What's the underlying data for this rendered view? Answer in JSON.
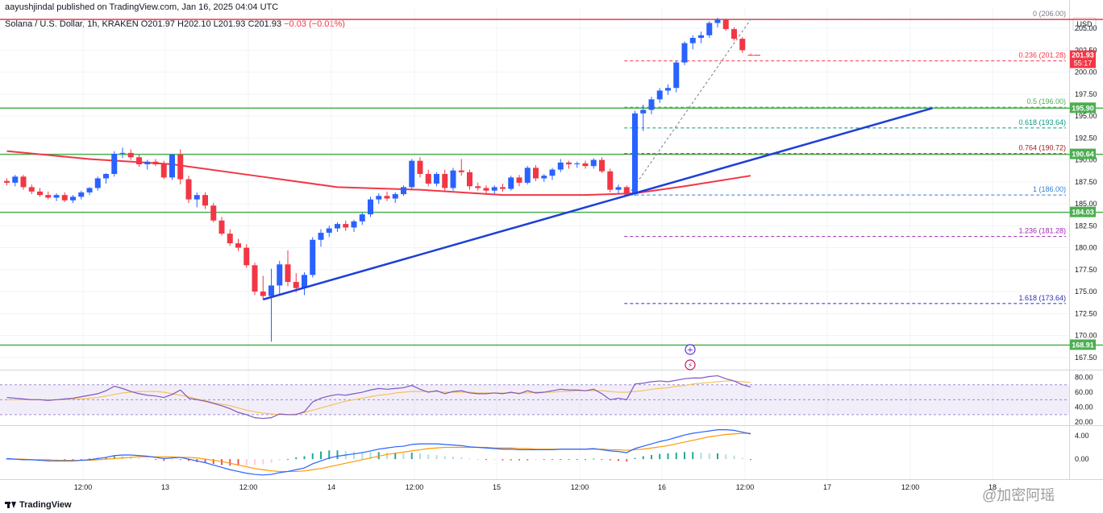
{
  "header": {
    "publisher_line": "aayushjindal published on TradingView.com, Jan 16, 2025 04:04 UTC",
    "symbol": "Solana / U.S. Dollar, 1h, KRAKEN",
    "ohlc": "O201.97  H202.10  L201.93  C201.93",
    "change": "−0.03 (−0.01%)"
  },
  "footer": {
    "brand": "TradingView"
  },
  "watermark": "@加密阿瑶",
  "colors": {
    "up": "#2962ff",
    "down": "#f23645",
    "sma": "#f23645",
    "trendline": "#1e3fd8",
    "level": "#4caf50",
    "top_level": "#f23645"
  },
  "icons": [
    "plus-circle-icon",
    "lightning-icon"
  ],
  "chart_data": [
    {
      "type": "candlestick",
      "title": "Solana / U.S. Dollar, 1h, KRAKEN",
      "price_axis_label": "USD",
      "y_ticks": [
        167.5,
        170.0,
        172.5,
        175.0,
        177.5,
        180.0,
        182.5,
        185.0,
        187.5,
        190.0,
        192.5,
        195.0,
        197.5,
        200.0,
        202.5,
        205.0
      ],
      "y_range": [
        166.2,
        207.3
      ],
      "x_ticks": [
        "12:00",
        "13",
        "12:00",
        "14",
        "12:00",
        "15",
        "12:00",
        "16",
        "12:00",
        "17",
        "12:00",
        "18"
      ],
      "candles": [
        [
          187.6,
          187.9,
          187.1,
          187.4
        ],
        [
          187.4,
          188.3,
          187.0,
          188.1
        ],
        [
          188.1,
          188.3,
          186.6,
          186.9
        ],
        [
          186.9,
          187.2,
          186.1,
          186.4
        ],
        [
          186.4,
          186.8,
          185.8,
          186.0
        ],
        [
          186.0,
          186.4,
          185.5,
          185.7
        ],
        [
          185.7,
          186.2,
          185.3,
          186.0
        ],
        [
          186.0,
          186.3,
          185.2,
          185.4
        ],
        [
          185.4,
          186.0,
          185.1,
          185.8
        ],
        [
          185.8,
          186.5,
          185.5,
          186.3
        ],
        [
          186.3,
          186.9,
          186.0,
          186.8
        ],
        [
          186.8,
          188.1,
          186.5,
          187.9
        ],
        [
          187.9,
          188.5,
          187.3,
          188.4
        ],
        [
          188.4,
          191.0,
          188.1,
          190.7
        ],
        [
          190.7,
          191.4,
          190.2,
          190.8
        ],
        [
          190.8,
          191.2,
          190.0,
          190.3
        ],
        [
          190.3,
          190.6,
          189.2,
          189.5
        ],
        [
          189.5,
          190.0,
          188.9,
          189.8
        ],
        [
          189.8,
          190.1,
          189.3,
          189.5
        ],
        [
          189.5,
          189.9,
          187.8,
          188.0
        ],
        [
          188.0,
          190.7,
          187.7,
          190.6
        ],
        [
          190.6,
          191.2,
          187.2,
          187.8
        ],
        [
          187.8,
          188.2,
          185.1,
          185.5
        ],
        [
          185.5,
          186.3,
          184.6,
          186.0
        ],
        [
          186.0,
          186.3,
          184.4,
          184.8
        ],
        [
          184.8,
          185.1,
          182.9,
          183.1
        ],
        [
          183.1,
          183.5,
          181.4,
          181.6
        ],
        [
          181.6,
          182.1,
          180.2,
          180.5
        ],
        [
          180.5,
          181.0,
          179.6,
          180.0
        ],
        [
          180.0,
          180.4,
          177.7,
          178.0
        ],
        [
          178.0,
          178.3,
          174.6,
          175.0
        ],
        [
          175.0,
          176.8,
          174.1,
          174.5
        ],
        [
          174.5,
          177.6,
          169.3,
          175.7
        ],
        [
          175.7,
          178.5,
          174.7,
          178.1
        ],
        [
          178.1,
          179.7,
          175.6,
          176.1
        ],
        [
          176.1,
          177.1,
          174.9,
          175.4
        ],
        [
          175.4,
          177.2,
          174.6,
          176.9
        ],
        [
          176.9,
          181.2,
          176.6,
          180.9
        ],
        [
          180.9,
          182.1,
          180.1,
          181.7
        ],
        [
          181.7,
          182.5,
          181.2,
          182.2
        ],
        [
          182.2,
          182.9,
          181.8,
          182.7
        ],
        [
          182.7,
          183.1,
          181.9,
          182.3
        ],
        [
          182.3,
          183.2,
          181.8,
          183.0
        ],
        [
          183.0,
          184.0,
          182.6,
          183.8
        ],
        [
          183.8,
          185.8,
          183.5,
          185.5
        ],
        [
          185.5,
          186.2,
          185.0,
          185.9
        ],
        [
          185.9,
          186.4,
          185.3,
          185.6
        ],
        [
          185.6,
          186.3,
          185.1,
          186.1
        ],
        [
          186.1,
          187.1,
          185.9,
          186.9
        ],
        [
          186.9,
          190.1,
          186.7,
          189.9
        ],
        [
          189.9,
          190.3,
          188.0,
          188.4
        ],
        [
          188.4,
          188.9,
          187.0,
          187.3
        ],
        [
          187.3,
          188.6,
          187.0,
          188.4
        ],
        [
          188.4,
          188.9,
          186.4,
          186.8
        ],
        [
          186.8,
          189.1,
          186.5,
          188.8
        ],
        [
          188.8,
          190.1,
          188.2,
          188.6
        ],
        [
          188.6,
          188.9,
          186.6,
          187.0
        ],
        [
          187.0,
          187.4,
          186.5,
          186.8
        ],
        [
          186.8,
          187.1,
          186.2,
          186.5
        ],
        [
          186.5,
          187.1,
          186.1,
          186.9
        ],
        [
          186.9,
          187.3,
          186.4,
          186.7
        ],
        [
          186.7,
          188.2,
          186.5,
          188.0
        ],
        [
          188.0,
          188.3,
          187.0,
          187.4
        ],
        [
          187.4,
          189.3,
          187.2,
          189.1
        ],
        [
          189.1,
          189.4,
          187.6,
          187.9
        ],
        [
          187.9,
          188.4,
          187.5,
          188.2
        ],
        [
          188.2,
          189.1,
          187.7,
          188.9
        ],
        [
          188.9,
          190.1,
          188.6,
          189.7
        ],
        [
          189.7,
          189.9,
          189.0,
          189.5
        ],
        [
          189.5,
          189.8,
          189.1,
          189.6
        ],
        [
          189.6,
          189.9,
          189.0,
          189.3
        ],
        [
          189.3,
          190.2,
          189.0,
          190.0
        ],
        [
          190.0,
          190.3,
          188.5,
          188.7
        ],
        [
          188.7,
          189.0,
          186.3,
          186.6
        ],
        [
          186.6,
          187.2,
          186.2,
          186.9
        ],
        [
          186.9,
          187.1,
          185.9,
          186.1
        ],
        [
          186.1,
          195.6,
          185.9,
          195.3
        ],
        [
          195.3,
          196.3,
          193.3,
          195.7
        ],
        [
          195.7,
          197.2,
          195.2,
          196.9
        ],
        [
          196.9,
          198.2,
          196.5,
          197.9
        ],
        [
          197.9,
          198.6,
          197.4,
          198.2
        ],
        [
          198.2,
          201.3,
          197.7,
          201.1
        ],
        [
          201.1,
          203.5,
          200.8,
          203.3
        ],
        [
          203.3,
          204.2,
          202.6,
          203.9
        ],
        [
          203.9,
          204.6,
          203.3,
          204.2
        ],
        [
          204.2,
          205.8,
          203.9,
          205.6
        ],
        [
          205.6,
          206.2,
          205.1,
          206.0
        ],
        [
          206.0,
          206.1,
          204.7,
          204.9
        ],
        [
          204.9,
          205.1,
          203.6,
          203.8
        ],
        [
          203.8,
          204.0,
          202.2,
          202.5
        ],
        [
          201.97,
          202.1,
          201.93,
          201.93
        ]
      ],
      "sma_100": {
        "name": "",
        "from_index": 0,
        "points": [
          [
            0,
            191.0
          ],
          [
            10,
            190.1
          ],
          [
            20,
            189.5
          ],
          [
            30,
            188.2
          ],
          [
            40,
            186.9
          ],
          [
            50,
            186.6
          ],
          [
            60,
            186.0
          ],
          [
            70,
            186.0
          ],
          [
            76,
            186.2
          ],
          [
            82,
            187.0
          ],
          [
            90,
            188.2
          ]
        ]
      },
      "trendline": {
        "from": [
          31,
          174.1
        ],
        "to": [
          112,
          195.9
        ]
      },
      "horizontal_levels": [
        {
          "label": "206.00",
          "price": 206.0,
          "kind": "resistance"
        },
        {
          "label": "195.90",
          "price": 195.9,
          "kind": "support"
        },
        {
          "label": "190.64",
          "price": 190.64,
          "kind": "support"
        },
        {
          "label": "184.03",
          "price": 184.03,
          "kind": "support"
        },
        {
          "label": "168.91",
          "price": 168.91,
          "kind": "support"
        }
      ],
      "fibonacci": {
        "from_index": 75,
        "to_index": 90,
        "levels": [
          {
            "ratio": "0",
            "price": "206.00",
            "color": "#787b86"
          },
          {
            "ratio": "0.236",
            "price": "201.28",
            "color": "#f23645"
          },
          {
            "ratio": "0.5",
            "price": "196.00",
            "color": "#4caf50"
          },
          {
            "ratio": "0.618",
            "price": "193.64",
            "color": "#089981"
          },
          {
            "ratio": "0.764",
            "price": "190.72",
            "color": "#a51d1d"
          },
          {
            "ratio": "1",
            "price": "186.00",
            "color": "#2f7fd6"
          },
          {
            "ratio": "1.236",
            "price": "181.28",
            "color": "#9c27b0"
          },
          {
            "ratio": "1.618",
            "price": "173.64",
            "color": "#2c2fb0"
          }
        ]
      },
      "last_price_badge": {
        "price": "201.93",
        "countdown": "55:17"
      }
    },
    {
      "type": "line",
      "name": "RSI",
      "y_ticks": [
        20.0,
        40.0,
        60.0,
        80.0
      ],
      "band": [
        30,
        70
      ],
      "y_range": [
        17,
        88
      ],
      "rsi": [
        53,
        52,
        51,
        50,
        50,
        49,
        50,
        51,
        52,
        54,
        56,
        58,
        62,
        68,
        65,
        61,
        58,
        56,
        55,
        53,
        57,
        63,
        52,
        50,
        48,
        45,
        42,
        38,
        33,
        30,
        26,
        25,
        26,
        31,
        30,
        30,
        34,
        47,
        52,
        55,
        57,
        56,
        58,
        60,
        63,
        65,
        64,
        65,
        66,
        69,
        64,
        60,
        62,
        58,
        61,
        62,
        59,
        58,
        58,
        59,
        58,
        60,
        58,
        62,
        59,
        60,
        62,
        64,
        63,
        63,
        62,
        64,
        58,
        50,
        52,
        50,
        71,
        72,
        74,
        75,
        74,
        76,
        78,
        79,
        79,
        81,
        82,
        78,
        75,
        70,
        67
      ],
      "signal": [
        50,
        50,
        50,
        50,
        50,
        50,
        50,
        50,
        51,
        51,
        52,
        53,
        55,
        57,
        59,
        60,
        61,
        61,
        61,
        60,
        58,
        56,
        54,
        51,
        49,
        46,
        44,
        42,
        39,
        36,
        34,
        32,
        31,
        30,
        30,
        31,
        33,
        36,
        39,
        42,
        45,
        48,
        50,
        52,
        54,
        56,
        57,
        59,
        60,
        61,
        61,
        61,
        61,
        60,
        60,
        60,
        60,
        59,
        59,
        59,
        59,
        59,
        59,
        59,
        60,
        60,
        60,
        61,
        61,
        62,
        62,
        62,
        62,
        61,
        60,
        60,
        61,
        62,
        64,
        65,
        66,
        68,
        69,
        71,
        72,
        73,
        74,
        75,
        75,
        74,
        73
      ]
    },
    {
      "type": "line",
      "name": "MACD",
      "y_ticks": [
        0.0,
        4.0
      ],
      "y_range": [
        -3.0,
        5.5
      ],
      "macd": [
        0.1,
        0.0,
        -0.1,
        -0.1,
        -0.2,
        -0.3,
        -0.3,
        -0.3,
        -0.3,
        -0.2,
        -0.1,
        0.1,
        0.3,
        0.6,
        0.7,
        0.7,
        0.6,
        0.5,
        0.3,
        0.1,
        0.2,
        0.3,
        0.0,
        -0.3,
        -0.6,
        -1.0,
        -1.4,
        -1.8,
        -2.1,
        -2.4,
        -2.6,
        -2.7,
        -2.6,
        -2.3,
        -2.1,
        -1.8,
        -1.5,
        -0.8,
        -0.3,
        0.2,
        0.5,
        0.7,
        0.9,
        1.1,
        1.4,
        1.7,
        1.9,
        2.1,
        2.2,
        2.5,
        2.6,
        2.6,
        2.6,
        2.5,
        2.4,
        2.3,
        2.1,
        2.0,
        1.9,
        1.8,
        1.7,
        1.7,
        1.6,
        1.6,
        1.6,
        1.6,
        1.6,
        1.7,
        1.7,
        1.7,
        1.7,
        1.8,
        1.6,
        1.4,
        1.3,
        1.1,
        1.8,
        2.2,
        2.6,
        3.0,
        3.3,
        3.7,
        4.1,
        4.4,
        4.6,
        4.8,
        5.0,
        5.0,
        4.9,
        4.6,
        4.3
      ],
      "signal": [
        0.0,
        0.0,
        0.0,
        -0.1,
        -0.1,
        -0.1,
        -0.2,
        -0.2,
        -0.2,
        -0.2,
        -0.2,
        -0.1,
        0.0,
        0.1,
        0.2,
        0.3,
        0.4,
        0.4,
        0.4,
        0.4,
        0.4,
        0.3,
        0.3,
        0.2,
        0.0,
        -0.2,
        -0.4,
        -0.7,
        -1.0,
        -1.3,
        -1.6,
        -1.8,
        -2.0,
        -2.1,
        -2.1,
        -2.1,
        -2.0,
        -1.8,
        -1.6,
        -1.3,
        -1.0,
        -0.7,
        -0.4,
        -0.1,
        0.2,
        0.5,
        0.8,
        1.0,
        1.2,
        1.4,
        1.6,
        1.8,
        1.9,
        2.0,
        2.0,
        2.0,
        2.0,
        2.0,
        2.0,
        1.9,
        1.9,
        1.9,
        1.8,
        1.8,
        1.7,
        1.7,
        1.7,
        1.7,
        1.7,
        1.7,
        1.7,
        1.7,
        1.7,
        1.6,
        1.6,
        1.5,
        1.6,
        1.7,
        1.9,
        2.1,
        2.3,
        2.6,
        2.9,
        3.2,
        3.5,
        3.8,
        4.0,
        4.2,
        4.3,
        4.4,
        4.4
      ]
    }
  ]
}
